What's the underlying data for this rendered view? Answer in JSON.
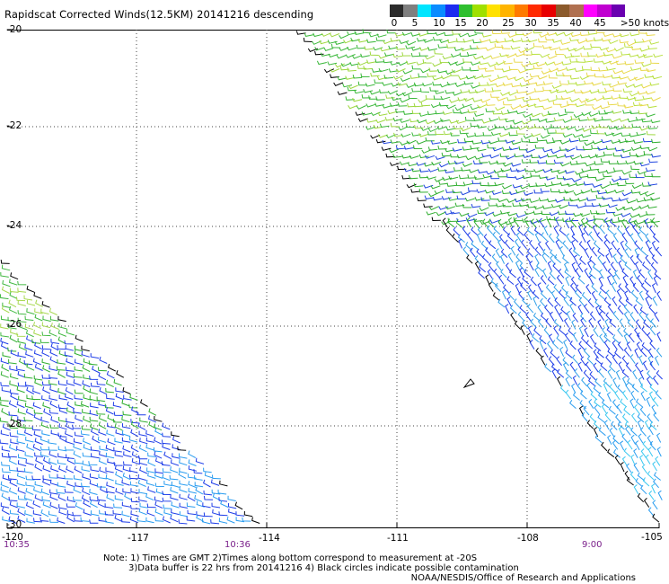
{
  "title": "Rapidscat Corrected Winds(12.5KM) 20141216 descending",
  "colorbar": {
    "colors": [
      "#2b2b2b",
      "#7f7f7f",
      "#00e5ff",
      "#0a8cff",
      "#1d2cf0",
      "#2fbf2f",
      "#9fe000",
      "#ffe100",
      "#ffb400",
      "#ff7a00",
      "#ff2a00",
      "#e80000",
      "#8b5a2b",
      "#b07050",
      "#ff00ff",
      "#c000d0",
      "#6a00b0"
    ],
    "labels": [
      "0",
      "5",
      "10",
      "15",
      "20",
      "25",
      "30",
      "35",
      "40",
      "45",
      ">50 knots"
    ]
  },
  "axes": {
    "lat_labels": [
      "-20",
      "-22",
      "-24",
      "-26",
      "-28",
      "-30"
    ],
    "lon_labels": [
      "-120",
      "-117",
      "-114",
      "-111",
      "-108",
      "-105"
    ]
  },
  "times": {
    "left": "10:35",
    "mid": "10:36",
    "right": "9:00"
  },
  "notes": [
    "Note: 1) Times are GMT 2)Times along bottom correspond to measurement at -20S",
    "3)Data buffer is 22 hrs from 20141216 4) Black circles indicate possible contamination"
  ],
  "credit": "NOAA/NESDIS/Office of Research and Applications"
}
